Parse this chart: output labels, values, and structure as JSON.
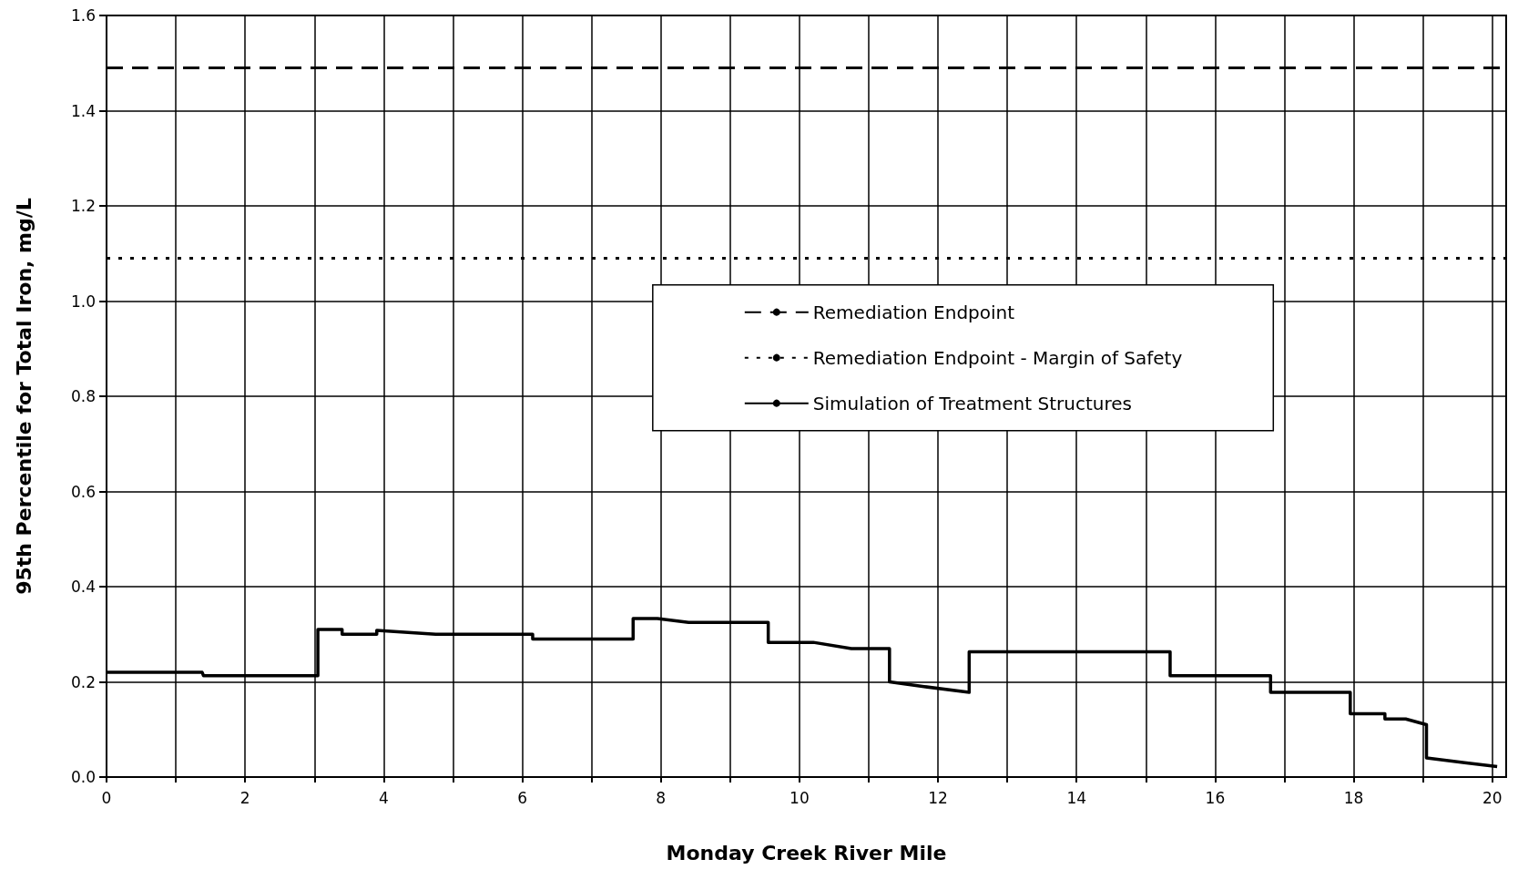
{
  "chart_data": {
    "type": "line",
    "xlabel": "Monday Creek River Mile",
    "ylabel": "95th Percentile for Total Iron, mg/L",
    "xlim": [
      0,
      20.2
    ],
    "xticks": [
      0,
      {
        "value": 1,
        "label": null
      },
      2,
      {
        "value": 3,
        "label": null
      },
      4,
      {
        "value": 5,
        "label": null
      },
      6,
      {
        "value": 7,
        "label": null
      },
      8,
      {
        "value": 9,
        "label": null
      },
      10,
      {
        "value": 11,
        "label": null
      },
      12,
      {
        "value": 13,
        "label": null
      },
      14,
      {
        "value": 15,
        "label": null
      },
      16,
      {
        "value": 17,
        "label": null
      },
      18,
      {
        "value": 19,
        "label": null
      },
      20
    ],
    "ylim": [
      0,
      1.6
    ],
    "yticks": [
      {
        "value": 0,
        "label": "0.0"
      },
      {
        "value": 0.2,
        "label": "0.2"
      },
      {
        "value": 0.4,
        "label": "0.4"
      },
      {
        "value": 0.6,
        "label": "0.6"
      },
      {
        "value": 0.8,
        "label": "0.8"
      },
      {
        "value": 1.0,
        "label": "1.0"
      },
      {
        "value": 1.2,
        "label": "1.2"
      },
      {
        "value": 1.4,
        "label": "1.4"
      },
      {
        "value": 1.6,
        "label": "1.6"
      }
    ],
    "grid": true,
    "legend": "right",
    "marker": "none",
    "ref_lines": [
      {
        "axis": "y",
        "value": 1.49,
        "label": "Remediation Endpoint",
        "color": "#000000",
        "line_style": "dashed"
      },
      {
        "axis": "y",
        "value": 1.09,
        "label": "Remediation Endpoint - Margin of Safety",
        "color": "#000000",
        "line_style": "dotted"
      }
    ],
    "series": [
      {
        "name": "Simulation of Treatment Structures",
        "color": "#000000",
        "line_style": "solid",
        "x": [
          0,
          1.38,
          1.4,
          3.05,
          3.05,
          3.4,
          3.4,
          3.9,
          3.9,
          4.75,
          6.15,
          6.15,
          7.6,
          7.6,
          7.95,
          8.4,
          9.55,
          9.55,
          10.2,
          10.75,
          11.3,
          11.3,
          11.8,
          12.45,
          12.45,
          15.35,
          15.35,
          16.8,
          16.8,
          17.95,
          17.95,
          18.45,
          18.45,
          18.75,
          19.05,
          19.05,
          19.6,
          20.07
        ],
        "values": [
          0.22,
          0.22,
          0.213,
          0.213,
          0.31,
          0.31,
          0.3,
          0.3,
          0.308,
          0.3,
          0.3,
          0.29,
          0.29,
          0.333,
          0.333,
          0.325,
          0.325,
          0.283,
          0.283,
          0.27,
          0.27,
          0.2,
          0.19,
          0.178,
          0.263,
          0.263,
          0.213,
          0.213,
          0.178,
          0.178,
          0.133,
          0.133,
          0.122,
          0.122,
          0.11,
          0.04,
          0.03,
          0.022
        ]
      }
    ]
  }
}
